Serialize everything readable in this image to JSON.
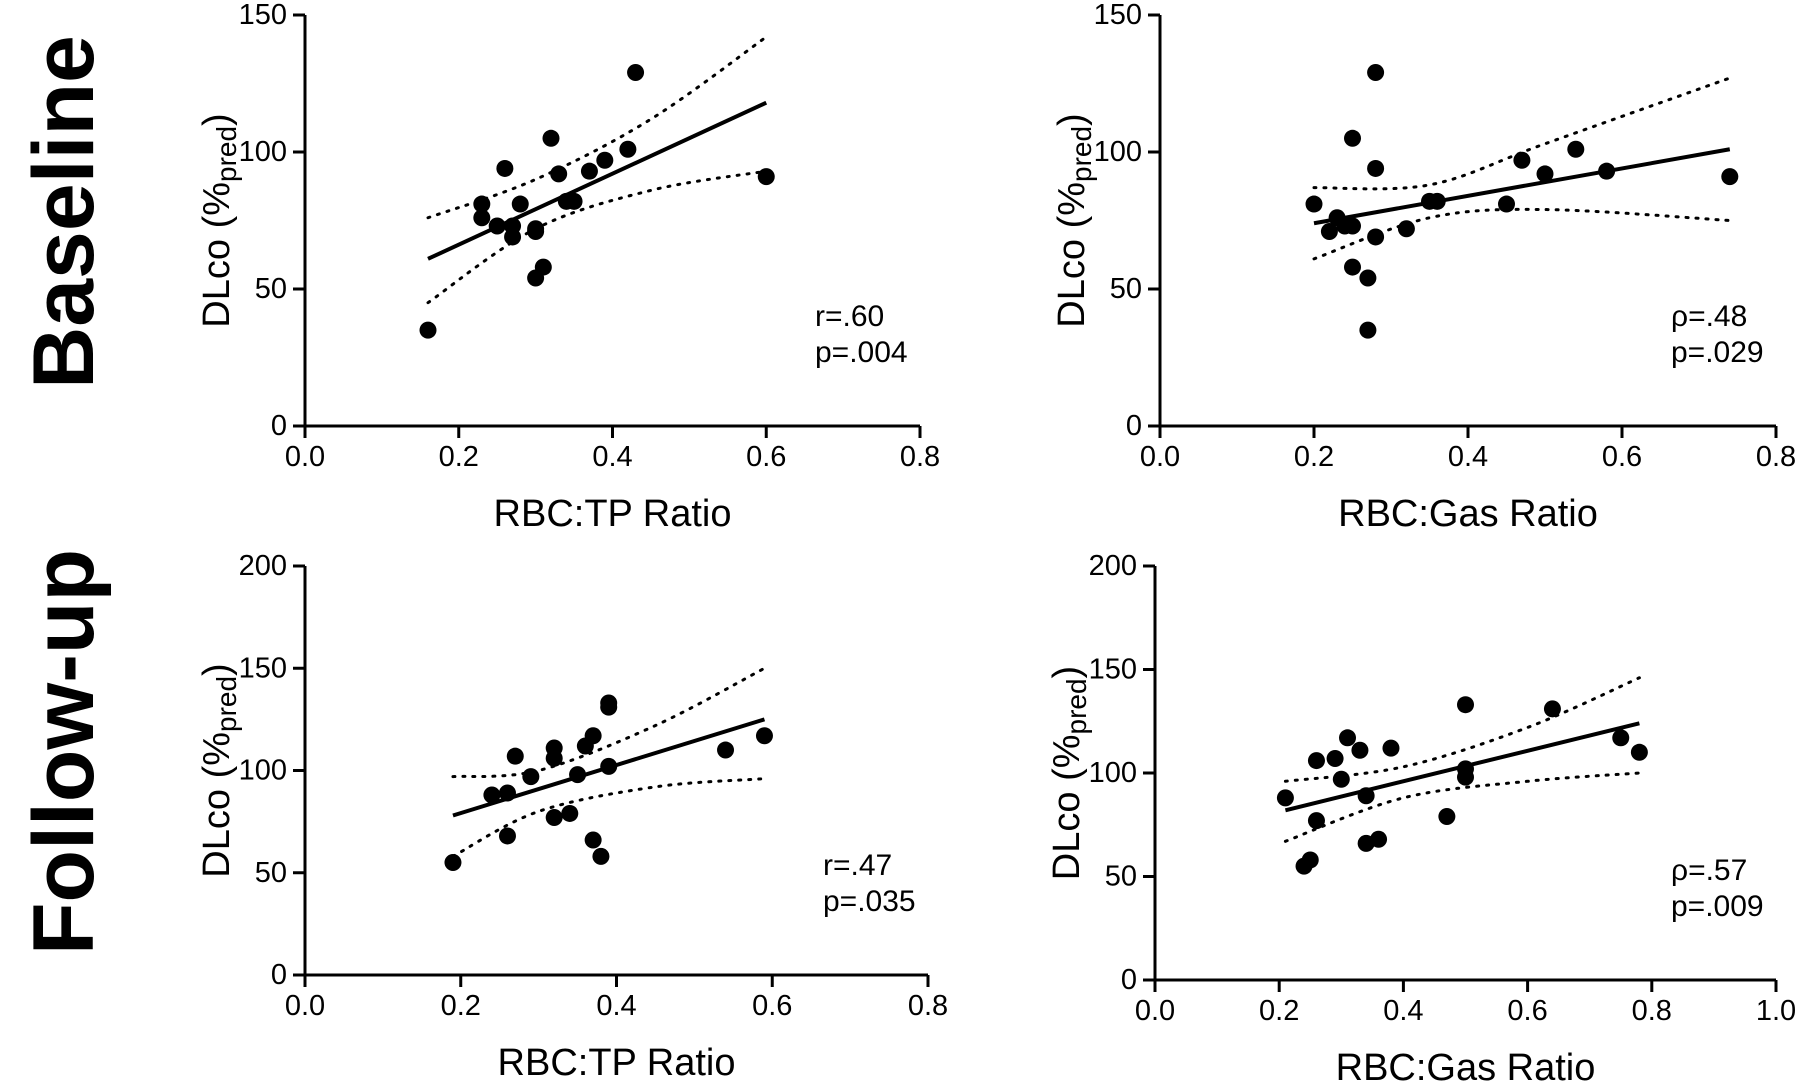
{
  "rows": [
    {
      "label": "Baseline",
      "panels": [
        0,
        1
      ]
    },
    {
      "label": "Follow-up",
      "panels": [
        2,
        3
      ]
    }
  ],
  "chart_data": [
    {
      "type": "scatter",
      "row": "Baseline",
      "xlabel": "RBC:TP Ratio",
      "ylabel": {
        "main": "DLco (%",
        "sub": "pred",
        "close": ")"
      },
      "xlim": [
        0,
        0.8
      ],
      "ylim": [
        0,
        150
      ],
      "xticks": [
        "0.0",
        "0.2",
        "0.4",
        "0.6",
        "0.8"
      ],
      "yticks": [
        "0",
        "50",
        "100",
        "150"
      ],
      "annotation": [
        "r=.60",
        "p=.004"
      ],
      "fit": {
        "x": [
          0.16,
          0.6
        ],
        "y": [
          61,
          118
        ]
      },
      "ci_upper": {
        "x": [
          0.16,
          0.3,
          0.45,
          0.6
        ],
        "y": [
          76,
          90,
          112,
          142
        ]
      },
      "ci_lower": {
        "x": [
          0.16,
          0.3,
          0.45,
          0.6
        ],
        "y": [
          45,
          72,
          86,
          93
        ]
      },
      "points": [
        {
          "x": 0.16,
          "y": 35
        },
        {
          "x": 0.23,
          "y": 81
        },
        {
          "x": 0.23,
          "y": 76
        },
        {
          "x": 0.25,
          "y": 73
        },
        {
          "x": 0.26,
          "y": 94
        },
        {
          "x": 0.27,
          "y": 73
        },
        {
          "x": 0.27,
          "y": 69
        },
        {
          "x": 0.28,
          "y": 81
        },
        {
          "x": 0.3,
          "y": 72
        },
        {
          "x": 0.3,
          "y": 71
        },
        {
          "x": 0.3,
          "y": 54
        },
        {
          "x": 0.31,
          "y": 58
        },
        {
          "x": 0.32,
          "y": 105
        },
        {
          "x": 0.33,
          "y": 92
        },
        {
          "x": 0.34,
          "y": 82
        },
        {
          "x": 0.35,
          "y": 82
        },
        {
          "x": 0.37,
          "y": 93
        },
        {
          "x": 0.39,
          "y": 97
        },
        {
          "x": 0.42,
          "y": 101
        },
        {
          "x": 0.43,
          "y": 129
        },
        {
          "x": 0.6,
          "y": 91
        }
      ]
    },
    {
      "type": "scatter",
      "row": "Baseline",
      "xlabel": "RBC:Gas Ratio",
      "ylabel": {
        "main": "DLco (%",
        "sub": "pred",
        "close": ")"
      },
      "xlim": [
        0,
        0.8
      ],
      "ylim": [
        0,
        150
      ],
      "xticks": [
        "0.0",
        "0.2",
        "0.4",
        "0.6",
        "0.8"
      ],
      "yticks": [
        "0",
        "50",
        "100",
        "150"
      ],
      "annotation": [
        "ρ=.48",
        "p=.029"
      ],
      "fit": {
        "x": [
          0.2,
          0.74
        ],
        "y": [
          74,
          101
        ]
      },
      "ci_upper": {
        "x": [
          0.2,
          0.35,
          0.5,
          0.74
        ],
        "y": [
          87,
          88,
          103,
          127
        ]
      },
      "ci_lower": {
        "x": [
          0.2,
          0.35,
          0.5,
          0.74
        ],
        "y": [
          61,
          76,
          79,
          75
        ]
      },
      "points": [
        {
          "x": 0.2,
          "y": 81
        },
        {
          "x": 0.22,
          "y": 71
        },
        {
          "x": 0.23,
          "y": 76
        },
        {
          "x": 0.24,
          "y": 73
        },
        {
          "x": 0.25,
          "y": 73
        },
        {
          "x": 0.25,
          "y": 105
        },
        {
          "x": 0.25,
          "y": 58
        },
        {
          "x": 0.27,
          "y": 54
        },
        {
          "x": 0.27,
          "y": 35
        },
        {
          "x": 0.28,
          "y": 129
        },
        {
          "x": 0.28,
          "y": 94
        },
        {
          "x": 0.28,
          "y": 69
        },
        {
          "x": 0.32,
          "y": 72
        },
        {
          "x": 0.35,
          "y": 82
        },
        {
          "x": 0.36,
          "y": 82
        },
        {
          "x": 0.45,
          "y": 81
        },
        {
          "x": 0.47,
          "y": 97
        },
        {
          "x": 0.5,
          "y": 92
        },
        {
          "x": 0.54,
          "y": 101
        },
        {
          "x": 0.58,
          "y": 93
        },
        {
          "x": 0.74,
          "y": 91
        }
      ]
    },
    {
      "type": "scatter",
      "row": "Follow-up",
      "xlabel": "RBC:TP Ratio",
      "ylabel": {
        "main": "DLco (%",
        "sub": "pred",
        "close": ")"
      },
      "xlim": [
        0,
        0.8
      ],
      "ylim": [
        0,
        200
      ],
      "xticks": [
        "0.0",
        "0.2",
        "0.4",
        "0.6",
        "0.8"
      ],
      "yticks": [
        "0",
        "50",
        "100",
        "150",
        "200"
      ],
      "annotation": [
        "r=.47",
        "p=.035"
      ],
      "fit": {
        "x": [
          0.19,
          0.59
        ],
        "y": [
          78,
          125
        ]
      },
      "ci_upper": {
        "x": [
          0.19,
          0.3,
          0.45,
          0.59
        ],
        "y": [
          97,
          100,
          122,
          150
        ]
      },
      "ci_lower": {
        "x": [
          0.19,
          0.3,
          0.45,
          0.59
        ],
        "y": [
          58,
          80,
          92,
          96
        ]
      },
      "points": [
        {
          "x": 0.19,
          "y": 55
        },
        {
          "x": 0.24,
          "y": 88
        },
        {
          "x": 0.26,
          "y": 89
        },
        {
          "x": 0.26,
          "y": 68
        },
        {
          "x": 0.27,
          "y": 107
        },
        {
          "x": 0.29,
          "y": 97
        },
        {
          "x": 0.32,
          "y": 111
        },
        {
          "x": 0.32,
          "y": 106
        },
        {
          "x": 0.32,
          "y": 77
        },
        {
          "x": 0.34,
          "y": 79
        },
        {
          "x": 0.35,
          "y": 98
        },
        {
          "x": 0.36,
          "y": 112
        },
        {
          "x": 0.37,
          "y": 117
        },
        {
          "x": 0.37,
          "y": 66
        },
        {
          "x": 0.38,
          "y": 58
        },
        {
          "x": 0.39,
          "y": 133
        },
        {
          "x": 0.39,
          "y": 131
        },
        {
          "x": 0.39,
          "y": 102
        },
        {
          "x": 0.54,
          "y": 110
        },
        {
          "x": 0.59,
          "y": 117
        }
      ]
    },
    {
      "type": "scatter",
      "row": "Follow-up",
      "xlabel": "RBC:Gas Ratio",
      "ylabel": {
        "main": "DLco (%",
        "sub": "pred",
        "close": ")"
      },
      "xlim": [
        0,
        1.0
      ],
      "ylim": [
        0,
        200
      ],
      "xticks": [
        "0.0",
        "0.2",
        "0.4",
        "0.6",
        "0.8",
        "1.0"
      ],
      "yticks": [
        "0",
        "50",
        "100",
        "150",
        "200"
      ],
      "annotation": [
        "ρ=.57",
        "p=.009"
      ],
      "fit": {
        "x": [
          0.21,
          0.78
        ],
        "y": [
          82,
          124
        ]
      },
      "ci_upper": {
        "x": [
          0.21,
          0.4,
          0.6,
          0.78
        ],
        "y": [
          96,
          103,
          122,
          146
        ]
      },
      "ci_lower": {
        "x": [
          0.21,
          0.4,
          0.6,
          0.78
        ],
        "y": [
          67,
          88,
          96,
          100
        ]
      },
      "points": [
        {
          "x": 0.21,
          "y": 88
        },
        {
          "x": 0.24,
          "y": 55
        },
        {
          "x": 0.25,
          "y": 58
        },
        {
          "x": 0.26,
          "y": 106
        },
        {
          "x": 0.26,
          "y": 77
        },
        {
          "x": 0.29,
          "y": 107
        },
        {
          "x": 0.3,
          "y": 97
        },
        {
          "x": 0.31,
          "y": 117
        },
        {
          "x": 0.33,
          "y": 111
        },
        {
          "x": 0.34,
          "y": 89
        },
        {
          "x": 0.34,
          "y": 66
        },
        {
          "x": 0.36,
          "y": 68
        },
        {
          "x": 0.38,
          "y": 112
        },
        {
          "x": 0.47,
          "y": 79
        },
        {
          "x": 0.5,
          "y": 133
        },
        {
          "x": 0.5,
          "y": 102
        },
        {
          "x": 0.5,
          "y": 98
        },
        {
          "x": 0.64,
          "y": 131
        },
        {
          "x": 0.75,
          "y": 117
        },
        {
          "x": 0.78,
          "y": 110
        }
      ]
    }
  ]
}
